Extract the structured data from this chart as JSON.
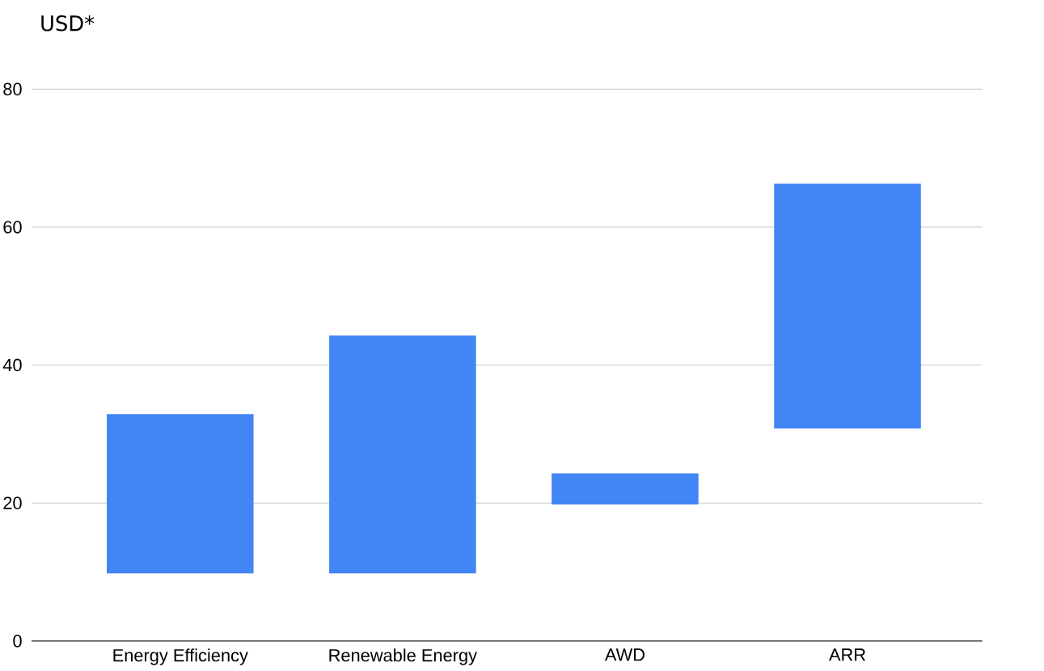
{
  "chart_data": {
    "type": "bar",
    "ylabel": "USD*",
    "categories": [
      "Energy Efficiency",
      "Renewable Energy",
      "AWD",
      "ARR"
    ],
    "base": [
      9.8,
      9.8,
      19.8,
      30.8
    ],
    "values": [
      23.1,
      34.5,
      4.5,
      35.5
    ],
    "color": "#4285f4",
    "ylim": [
      0,
      80
    ],
    "yticks": [
      0,
      20,
      40,
      60,
      80
    ],
    "grid": "y"
  }
}
